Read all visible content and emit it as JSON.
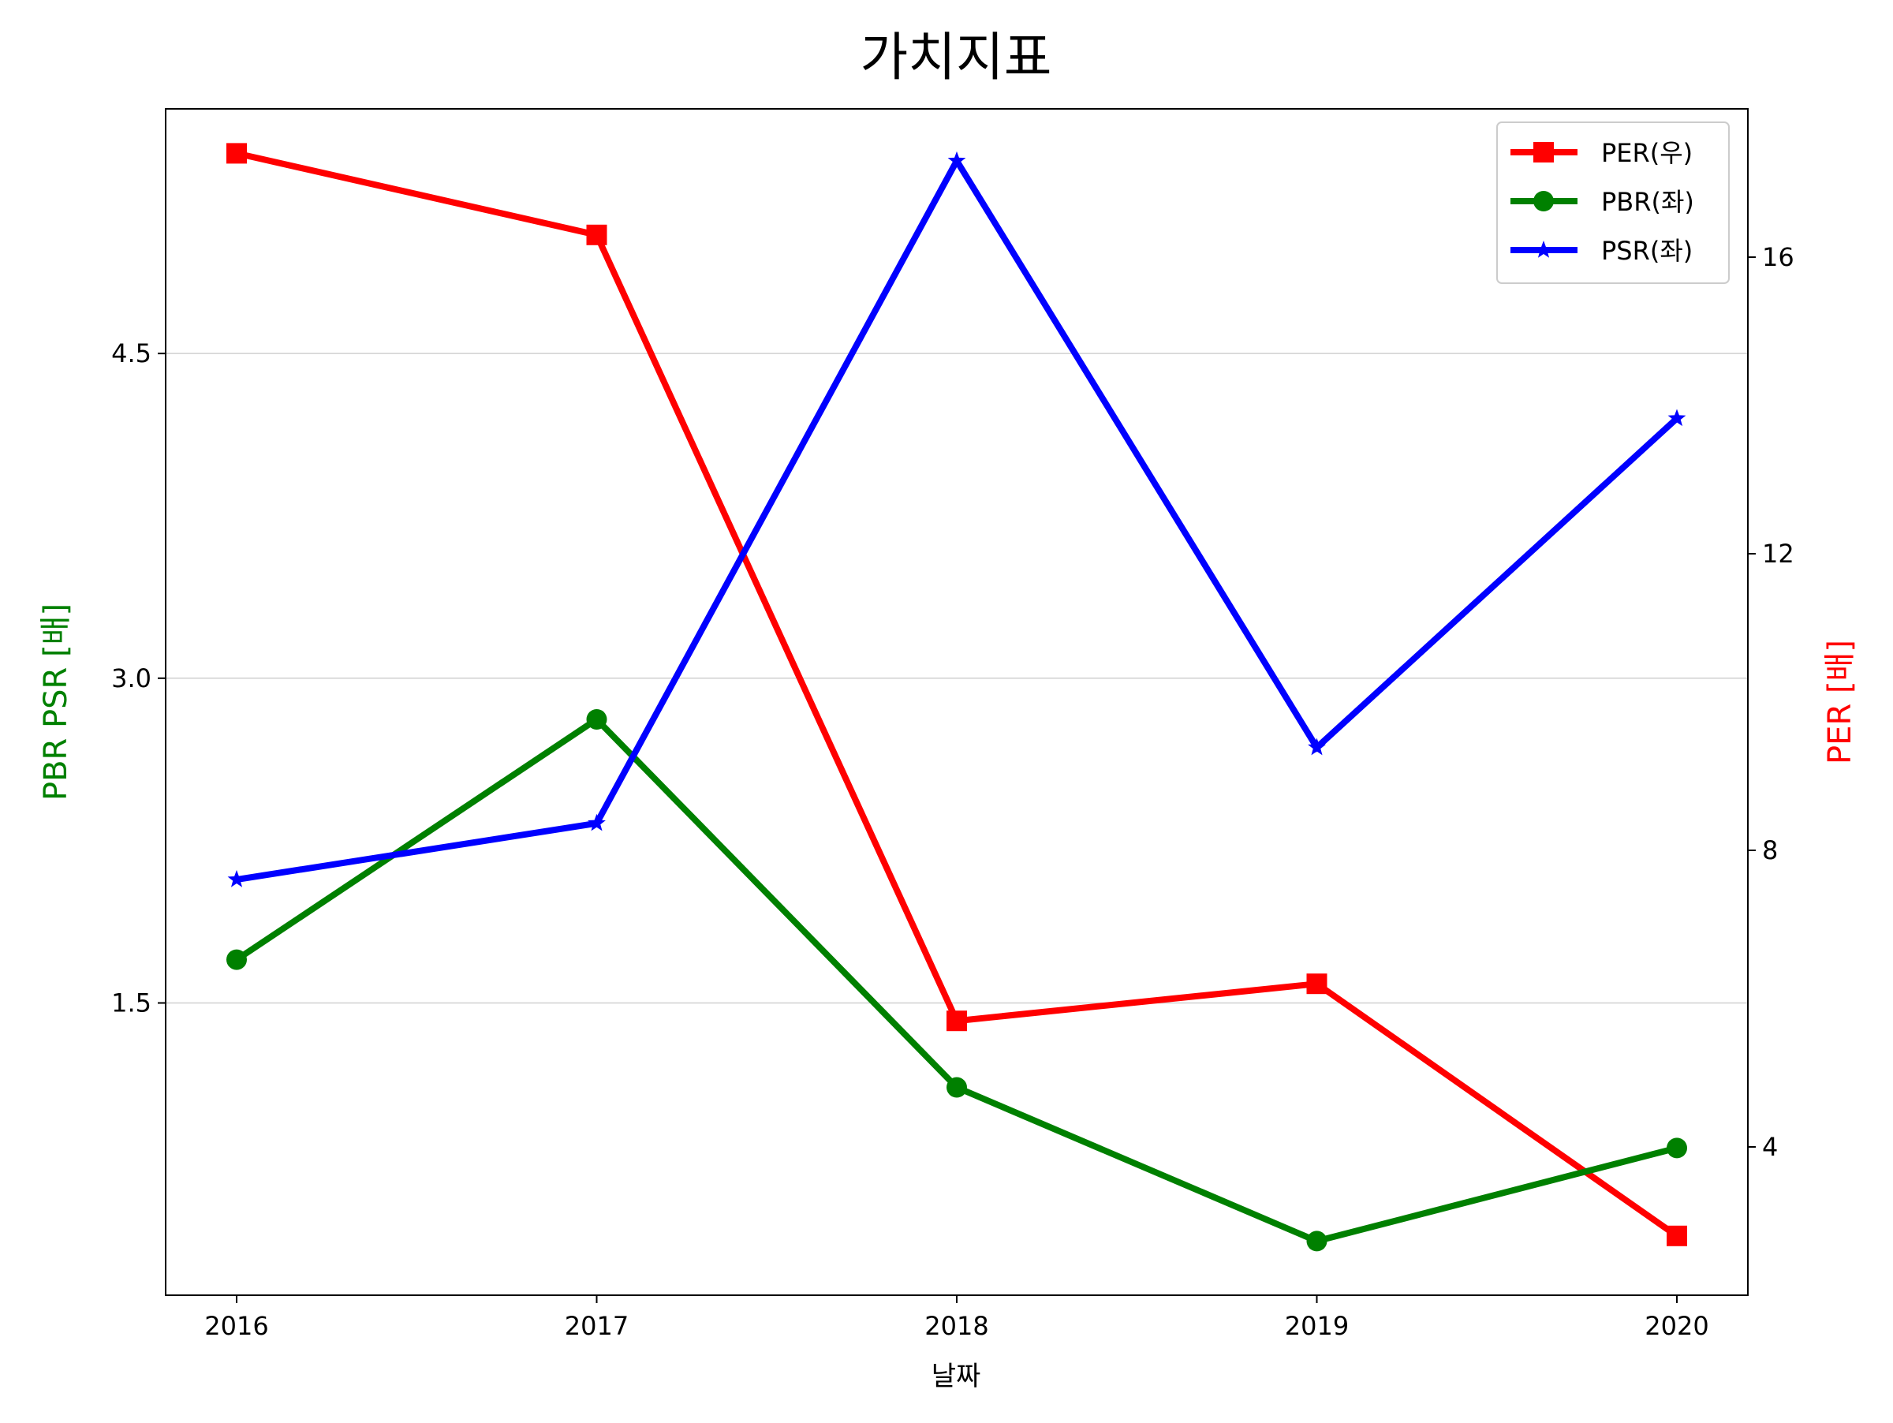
{
  "chart_data": {
    "type": "line",
    "title": "가치지표",
    "xlabel": "날짜",
    "ylabel_left": "PBR PSR [배]",
    "ylabel_right": "PER [배]",
    "x": [
      "2016",
      "2017",
      "2018",
      "2019",
      "2020"
    ],
    "left_axis": {
      "ylim": [
        0.15,
        5.63
      ],
      "ticks": [
        1.5,
        3.0,
        4.5
      ],
      "tick_labels": [
        "1.5",
        "3.0",
        "4.5"
      ],
      "color": "#008000"
    },
    "right_axis": {
      "ylim": [
        2.0,
        18.0
      ],
      "ticks": [
        4,
        8,
        12,
        16
      ],
      "tick_labels": [
        "4",
        "8",
        "12",
        "16"
      ],
      "color": "#ff0000"
    },
    "grid": "horizontal (left axis)",
    "legend_position": "top-right",
    "series": [
      {
        "name": "PER(우)",
        "axis": "right",
        "color": "#ff0000",
        "marker": "square",
        "values": [
          17.4,
          16.3,
          5.7,
          6.2,
          2.8
        ]
      },
      {
        "name": "PBR(좌)",
        "axis": "left",
        "color": "#008000",
        "marker": "circle",
        "values": [
          1.7,
          2.81,
          1.11,
          0.4,
          0.83
        ]
      },
      {
        "name": "PSR(좌)",
        "axis": "left",
        "color": "#0000ff",
        "marker": "star",
        "values": [
          2.07,
          2.33,
          5.39,
          2.68,
          4.2
        ]
      }
    ]
  }
}
